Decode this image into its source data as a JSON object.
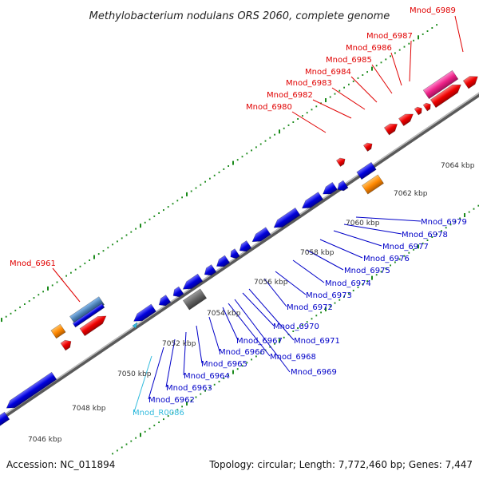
{
  "title": "Methylobacterium nodulans ORS 2060, complete genome",
  "footer": {
    "accession": "Accession: NC_011894",
    "info": "Topology: circular; Length: 7,772,460 bp; Genes: 7,447"
  },
  "kbp_labels": [
    "7046 kbp",
    "7048 kbp",
    "7050 kbp",
    "7052 kbp",
    "7054 kbp",
    "7056 kbp",
    "7058 kbp",
    "7060 kbp",
    "7062 kbp",
    "7064 kbp"
  ],
  "forward_labels": [
    "Mnod_6961",
    "Mnod_6980",
    "Mnod_6982",
    "Mnod_6983",
    "Mnod_6984",
    "Mnod_6985",
    "Mnod_6986",
    "Mnod_6987",
    "Mnod_6989"
  ],
  "reverse_labels": [
    "Mnod_R0086",
    "Mnod_6962",
    "Mnod_6963",
    "Mnod_6964",
    "Mnod_6965",
    "Mnod_6966",
    "Mnod_6967",
    "Mnod_6968",
    "Mnod_6969",
    "Mnod_6970",
    "Mnod_6971",
    "Mnod_6972",
    "Mnod_6973",
    "Mnod_6974",
    "Mnod_6975",
    "Mnod_6976",
    "Mnod_6977",
    "Mnod_6978",
    "Mnod_6979"
  ],
  "colors": {
    "forward": "#e00000",
    "reverse": "#0000c8",
    "rna": "#33bbdd",
    "backbone": "#8c8c8c",
    "tick": "#1a8a1a",
    "pseudo": "#666666",
    "orange": "#ff8800",
    "pink": "#ee2288"
  }
}
